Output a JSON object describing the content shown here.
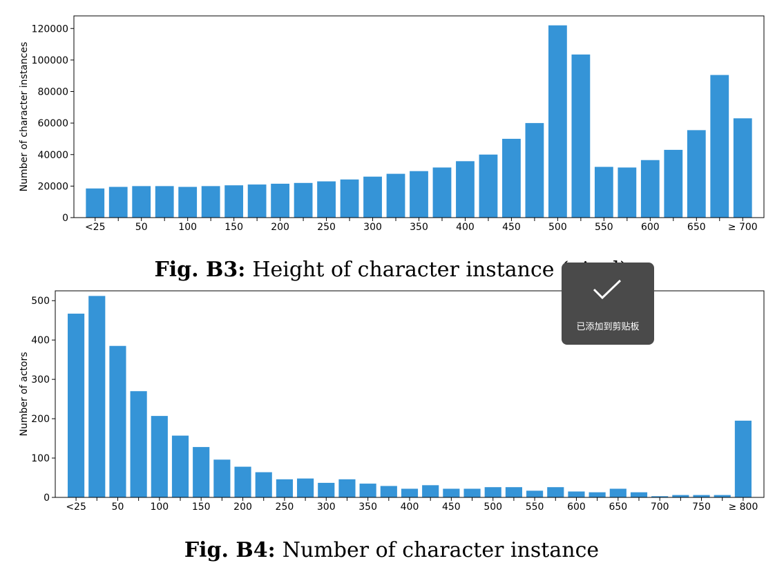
{
  "chart_data": [
    {
      "type": "bar",
      "ylabel": "Number of character instances",
      "xlabel": "",
      "ylim": [
        0,
        128000
      ],
      "yticks": [
        0,
        20000,
        40000,
        60000,
        80000,
        100000,
        120000
      ],
      "xtick_labels": [
        "<25",
        "",
        "50",
        "",
        "100",
        "",
        "150",
        "",
        "200",
        "",
        "250",
        "",
        "300",
        "",
        "350",
        "",
        "400",
        "",
        "450",
        "",
        "500",
        "",
        "550",
        "",
        "600",
        "",
        "650",
        "",
        "≥ 700"
      ],
      "values": [
        18500,
        19500,
        20000,
        20000,
        19500,
        20000,
        20500,
        21000,
        21500,
        22000,
        23000,
        24200,
        26000,
        27800,
        29500,
        31800,
        35800,
        40000,
        50000,
        60000,
        122000,
        103500,
        32200,
        31800,
        36500,
        43000,
        55500,
        90500,
        63000
      ],
      "bar_color": "#3594d7",
      "caption_label": "Fig. B3:",
      "caption_text": "Height of character instance (pixel)"
    },
    {
      "type": "bar",
      "ylabel": "Number of actors",
      "xlabel": "",
      "ylim": [
        0,
        525
      ],
      "yticks": [
        0,
        100,
        200,
        300,
        400,
        500
      ],
      "xtick_labels": [
        "<25",
        "",
        "50",
        "",
        "100",
        "",
        "150",
        "",
        "200",
        "",
        "250",
        "",
        "300",
        "",
        "350",
        "",
        "400",
        "",
        "450",
        "",
        "500",
        "",
        "550",
        "",
        "600",
        "",
        "650",
        "",
        "700",
        "",
        "750",
        "",
        "≥ 800"
      ],
      "values": [
        467,
        512,
        385,
        270,
        207,
        157,
        128,
        96,
        78,
        64,
        46,
        48,
        37,
        46,
        35,
        29,
        22,
        31,
        22,
        22,
        26,
        26,
        17,
        26,
        15,
        13,
        22,
        13,
        3,
        6,
        6,
        6,
        195
      ],
      "bar_color": "#3594d7",
      "caption_label": "Fig. B4:",
      "caption_text": "Number of character instance"
    }
  ],
  "toast": {
    "icon": "checkmark-icon",
    "message": "已添加到剪贴板"
  }
}
